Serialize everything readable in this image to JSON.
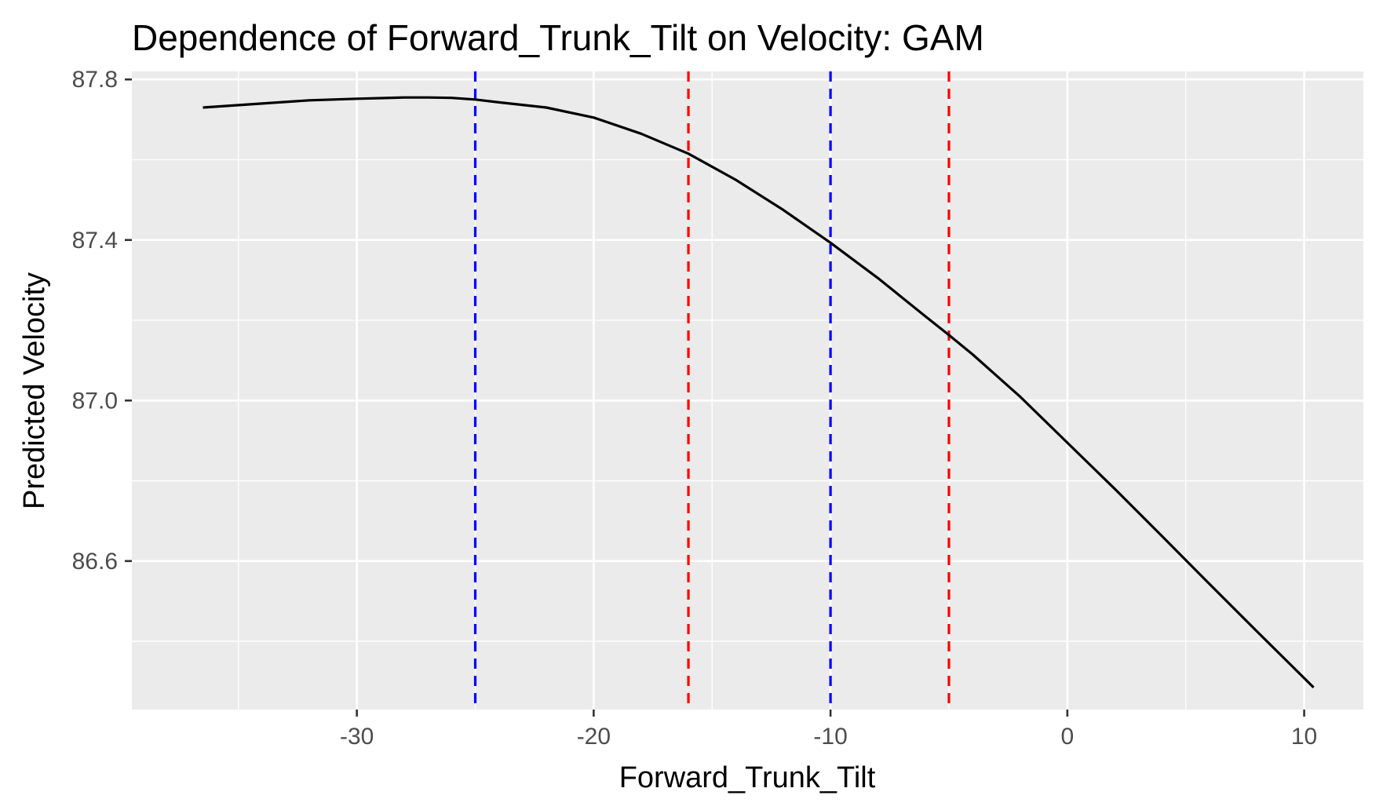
{
  "chart_data": {
    "type": "line",
    "title": "Dependence of Forward_Trunk_Tilt on Velocity: GAM",
    "xlabel": "Forward_Trunk_Tilt",
    "ylabel": "Predicted Velocity",
    "xlim": [
      -39.5,
      12.5
    ],
    "ylim": [
      86.23,
      87.82
    ],
    "x_ticks": [
      -30,
      -20,
      -10,
      0,
      10
    ],
    "x_tick_labels": [
      "-30",
      "-20",
      "-10",
      "0",
      "10"
    ],
    "y_ticks": [
      86.6,
      87.0,
      87.4,
      87.8
    ],
    "y_tick_labels": [
      "86.6",
      "87.0",
      "87.4",
      "87.8"
    ],
    "x_minor_ticks": [
      -35,
      -25,
      -15,
      -5,
      5
    ],
    "y_minor_ticks": [
      86.4,
      86.8,
      87.2,
      87.6
    ],
    "grid": true,
    "legend": "none",
    "panel_background": "#ebebeb",
    "grid_color": "#ffffff",
    "series": [
      {
        "color": "#000000",
        "x": [
          -36.5,
          -34,
          -32,
          -30,
          -28,
          -27,
          -26,
          -25,
          -24,
          -22,
          -20,
          -18,
          -16,
          -14,
          -12,
          -10,
          -8,
          -6,
          -5,
          -4,
          -2,
          0,
          2,
          4,
          6,
          8,
          10.4
        ],
        "y": [
          87.73,
          87.74,
          87.748,
          87.752,
          87.755,
          87.755,
          87.754,
          87.75,
          87.743,
          87.73,
          87.705,
          87.665,
          87.615,
          87.55,
          87.475,
          87.393,
          87.305,
          87.21,
          87.163,
          87.115,
          87.01,
          86.895,
          86.78,
          86.662,
          86.543,
          86.425,
          86.285
        ]
      }
    ],
    "reference_lines": [
      {
        "axis": "x",
        "value": -25,
        "color": "#0000ff",
        "style": "dashed"
      },
      {
        "axis": "x",
        "value": -16,
        "color": "#ff0000",
        "style": "dashed"
      },
      {
        "axis": "x",
        "value": -10,
        "color": "#0000ff",
        "style": "dashed"
      },
      {
        "axis": "x",
        "value": -5,
        "color": "#ff0000",
        "style": "dashed"
      }
    ]
  }
}
